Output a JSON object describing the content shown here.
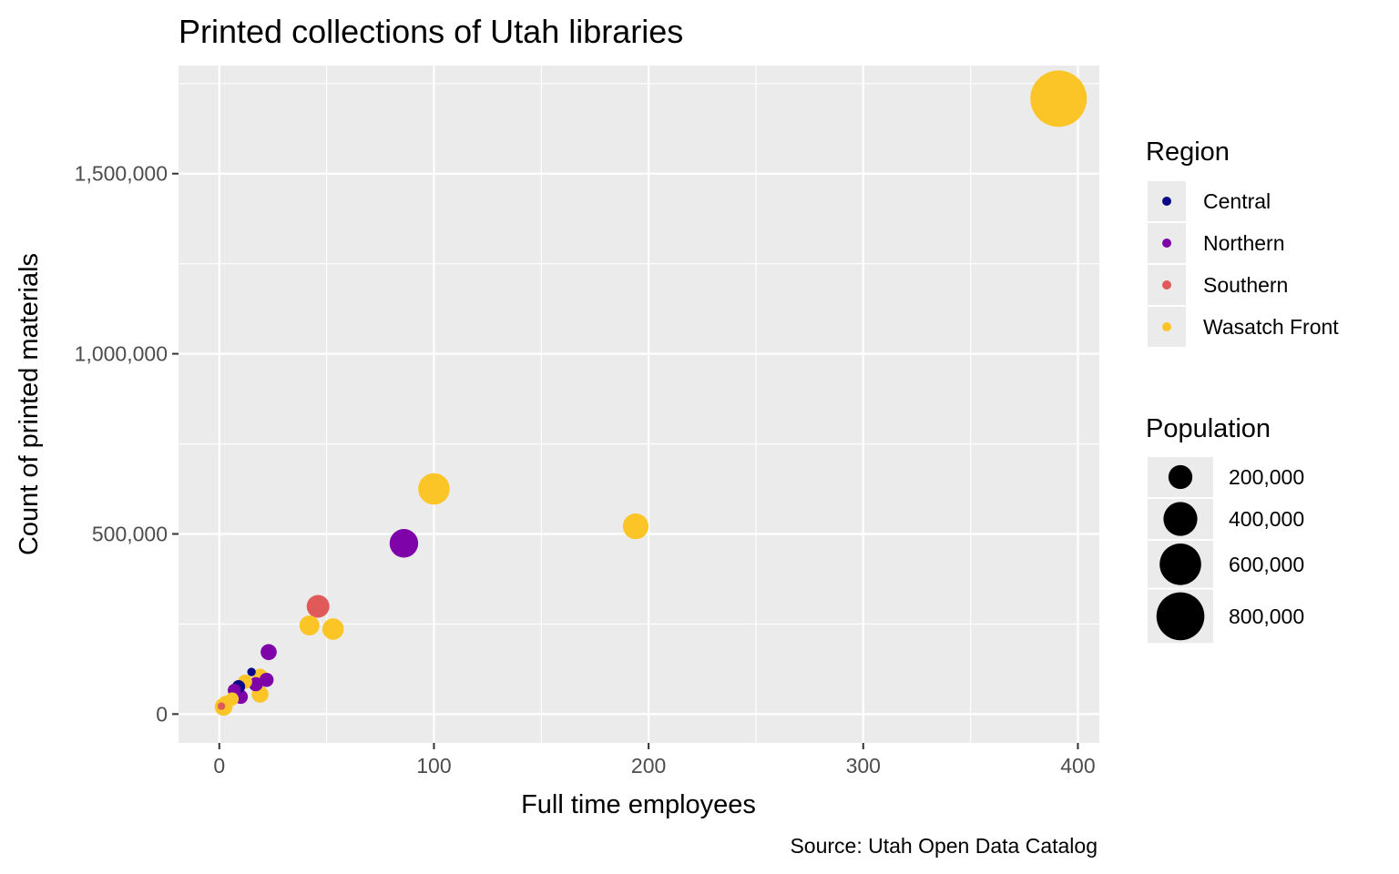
{
  "chart_data": {
    "type": "scatter",
    "title": "Printed collections of Utah libraries",
    "xlabel": "Full time employees",
    "ylabel": "Count of printed materials",
    "caption": "Source: Utah Open Data Catalog",
    "xlim": [
      -19,
      410
    ],
    "ylim": [
      -80000,
      1800000
    ],
    "x_ticks": [
      0,
      100,
      200,
      300,
      400
    ],
    "x_tick_labels": [
      "0",
      "100",
      "200",
      "300",
      "400"
    ],
    "y_ticks": [
      0,
      500000,
      1000000,
      1500000
    ],
    "y_tick_labels": [
      "0",
      "500,000",
      "1,000,000",
      "1,500,000"
    ],
    "grid": true,
    "legend_position": "right",
    "color_legend": {
      "title": "Region",
      "entries": [
        {
          "label": "Central",
          "color": "#0d0887"
        },
        {
          "label": "Northern",
          "color": "#7e03a8"
        },
        {
          "label": "Southern",
          "color": "#e05a5a"
        },
        {
          "label": "Wasatch Front",
          "color": "#fbc527"
        }
      ]
    },
    "size_legend": {
      "title": "Population",
      "entries": [
        {
          "value": 200000,
          "label": "200,000"
        },
        {
          "value": 400000,
          "label": "400,000"
        },
        {
          "value": 600000,
          "label": "600,000"
        },
        {
          "value": 800000,
          "label": "800,000"
        }
      ]
    },
    "points": [
      {
        "x": 391,
        "y": 1708000,
        "population": 1110000,
        "region": "Wasatch Front"
      },
      {
        "x": 100,
        "y": 625000,
        "population": 345000,
        "region": "Wasatch Front"
      },
      {
        "x": 194,
        "y": 521000,
        "population": 230000,
        "region": "Wasatch Front"
      },
      {
        "x": 86,
        "y": 474000,
        "population": 285000,
        "region": "Northern"
      },
      {
        "x": 46,
        "y": 299000,
        "population": 180000,
        "region": "Southern"
      },
      {
        "x": 42,
        "y": 246000,
        "population": 140000,
        "region": "Wasatch Front"
      },
      {
        "x": 53,
        "y": 236000,
        "population": 160000,
        "region": "Wasatch Front"
      },
      {
        "x": 23,
        "y": 172000,
        "population": 90000,
        "region": "Northern"
      },
      {
        "x": 15,
        "y": 117000,
        "population": 25000,
        "region": "Central"
      },
      {
        "x": 19,
        "y": 105000,
        "population": 80000,
        "region": "Wasatch Front"
      },
      {
        "x": 22,
        "y": 95000,
        "population": 70000,
        "region": "Northern"
      },
      {
        "x": 17,
        "y": 83000,
        "population": 70000,
        "region": "Northern"
      },
      {
        "x": 12,
        "y": 90000,
        "population": 70000,
        "region": "Wasatch Front"
      },
      {
        "x": 9,
        "y": 76000,
        "population": 60000,
        "region": "Central"
      },
      {
        "x": 7,
        "y": 66000,
        "population": 60000,
        "region": "Northern"
      },
      {
        "x": 19,
        "y": 55000,
        "population": 100000,
        "region": "Wasatch Front"
      },
      {
        "x": 10,
        "y": 48000,
        "population": 70000,
        "region": "Northern"
      },
      {
        "x": 6,
        "y": 42000,
        "population": 60000,
        "region": "Wasatch Front"
      },
      {
        "x": 3,
        "y": 30000,
        "population": 80000,
        "region": "Wasatch Front"
      },
      {
        "x": 2,
        "y": 20000,
        "population": 110000,
        "region": "Wasatch Front"
      },
      {
        "x": 1,
        "y": 22000,
        "population": 20000,
        "region": "Southern"
      }
    ]
  }
}
